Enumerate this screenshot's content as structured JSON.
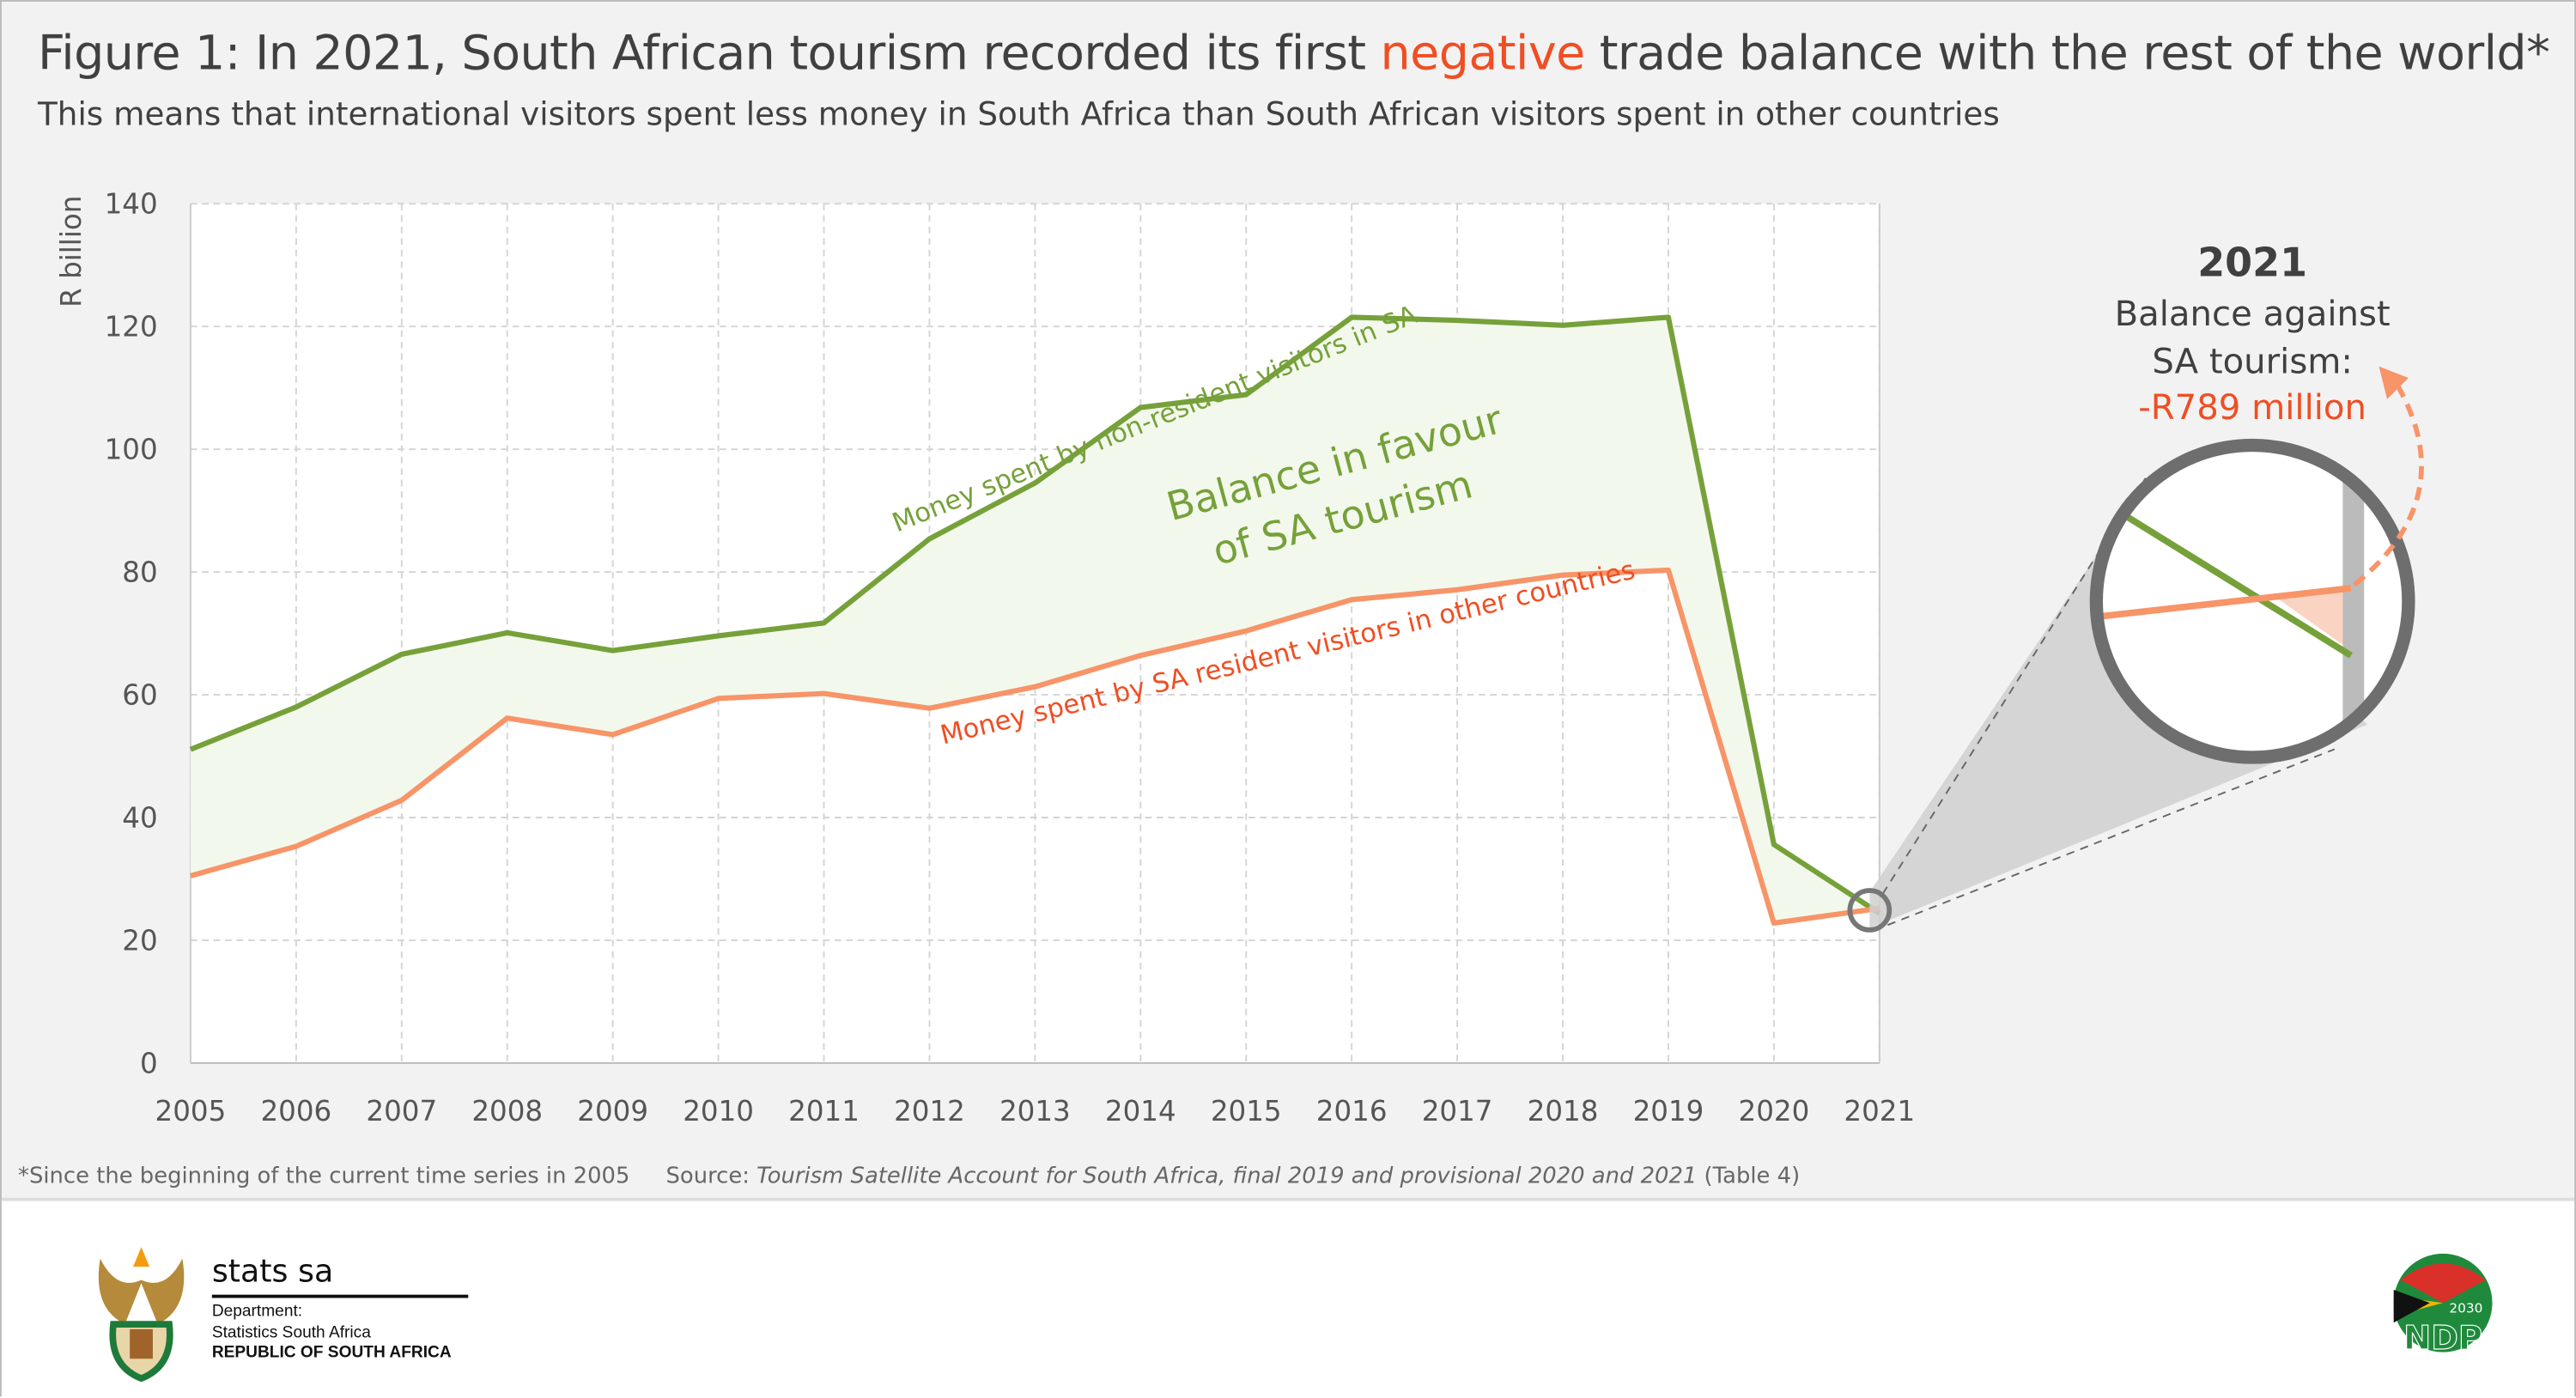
{
  "title_prefix": "Figure 1: In 2021, South African tourism recorded its first ",
  "title_highlight": "negative",
  "title_suffix": " trade balance with the rest of the world*",
  "subtitle": "This means that international visitors spent less money in South Africa than South African visitors spent in other countries",
  "chart_data": {
    "type": "line",
    "ylabel": "R billion",
    "ylim": [
      0,
      140
    ],
    "yticks": [
      0,
      20,
      40,
      60,
      80,
      100,
      120,
      140
    ],
    "grid": true,
    "x": [
      "2005",
      "2006",
      "2007",
      "2008",
      "2009",
      "2010",
      "2011",
      "2012",
      "2013",
      "2014",
      "2015",
      "2016",
      "2017",
      "2018",
      "2019",
      "2020",
      "2021"
    ],
    "series": [
      {
        "name": "Money spent by non-resident visitors in SA",
        "color": "#76a13a",
        "values": [
          51.1,
          58.0,
          66.6,
          70.1,
          67.2,
          69.6,
          71.7,
          85.4,
          94.5,
          106.8,
          108.9,
          121.5,
          121.0,
          120.2,
          121.5,
          35.6,
          24.4
        ]
      },
      {
        "name": "Money spent by SA resident visitors in other countries",
        "color": "#f79468",
        "values": [
          30.5,
          35.3,
          42.8,
          56.2,
          53.5,
          59.4,
          60.2,
          57.8,
          61.3,
          66.4,
          70.4,
          75.5,
          77.1,
          79.5,
          80.3,
          22.8,
          25.2
        ]
      }
    ],
    "area_label_line1": "Balance in favour",
    "area_label_line2": "of SA tourism",
    "fill_color": "#f3f8ec"
  },
  "annotation": {
    "year": "2021",
    "line1": "Balance against",
    "line2": "SA tourism:",
    "value": "-R789 million",
    "value_color": "#f04e23"
  },
  "footnote": "*Since the beginning of the current time series in 2005",
  "source_label": "Source: ",
  "source_title": "Tourism Satellite Account for South Africa, final 2019 and provisional 2020 and 2021",
  "source_suffix": " (Table 4)",
  "footer": {
    "brand": "stats sa",
    "dept_line1": "Department:",
    "dept_line2": "Statistics South Africa",
    "dept_line3": "REPUBLIC OF SOUTH AFRICA",
    "ndp_year": "2030",
    "ndp_text": "NDP"
  }
}
